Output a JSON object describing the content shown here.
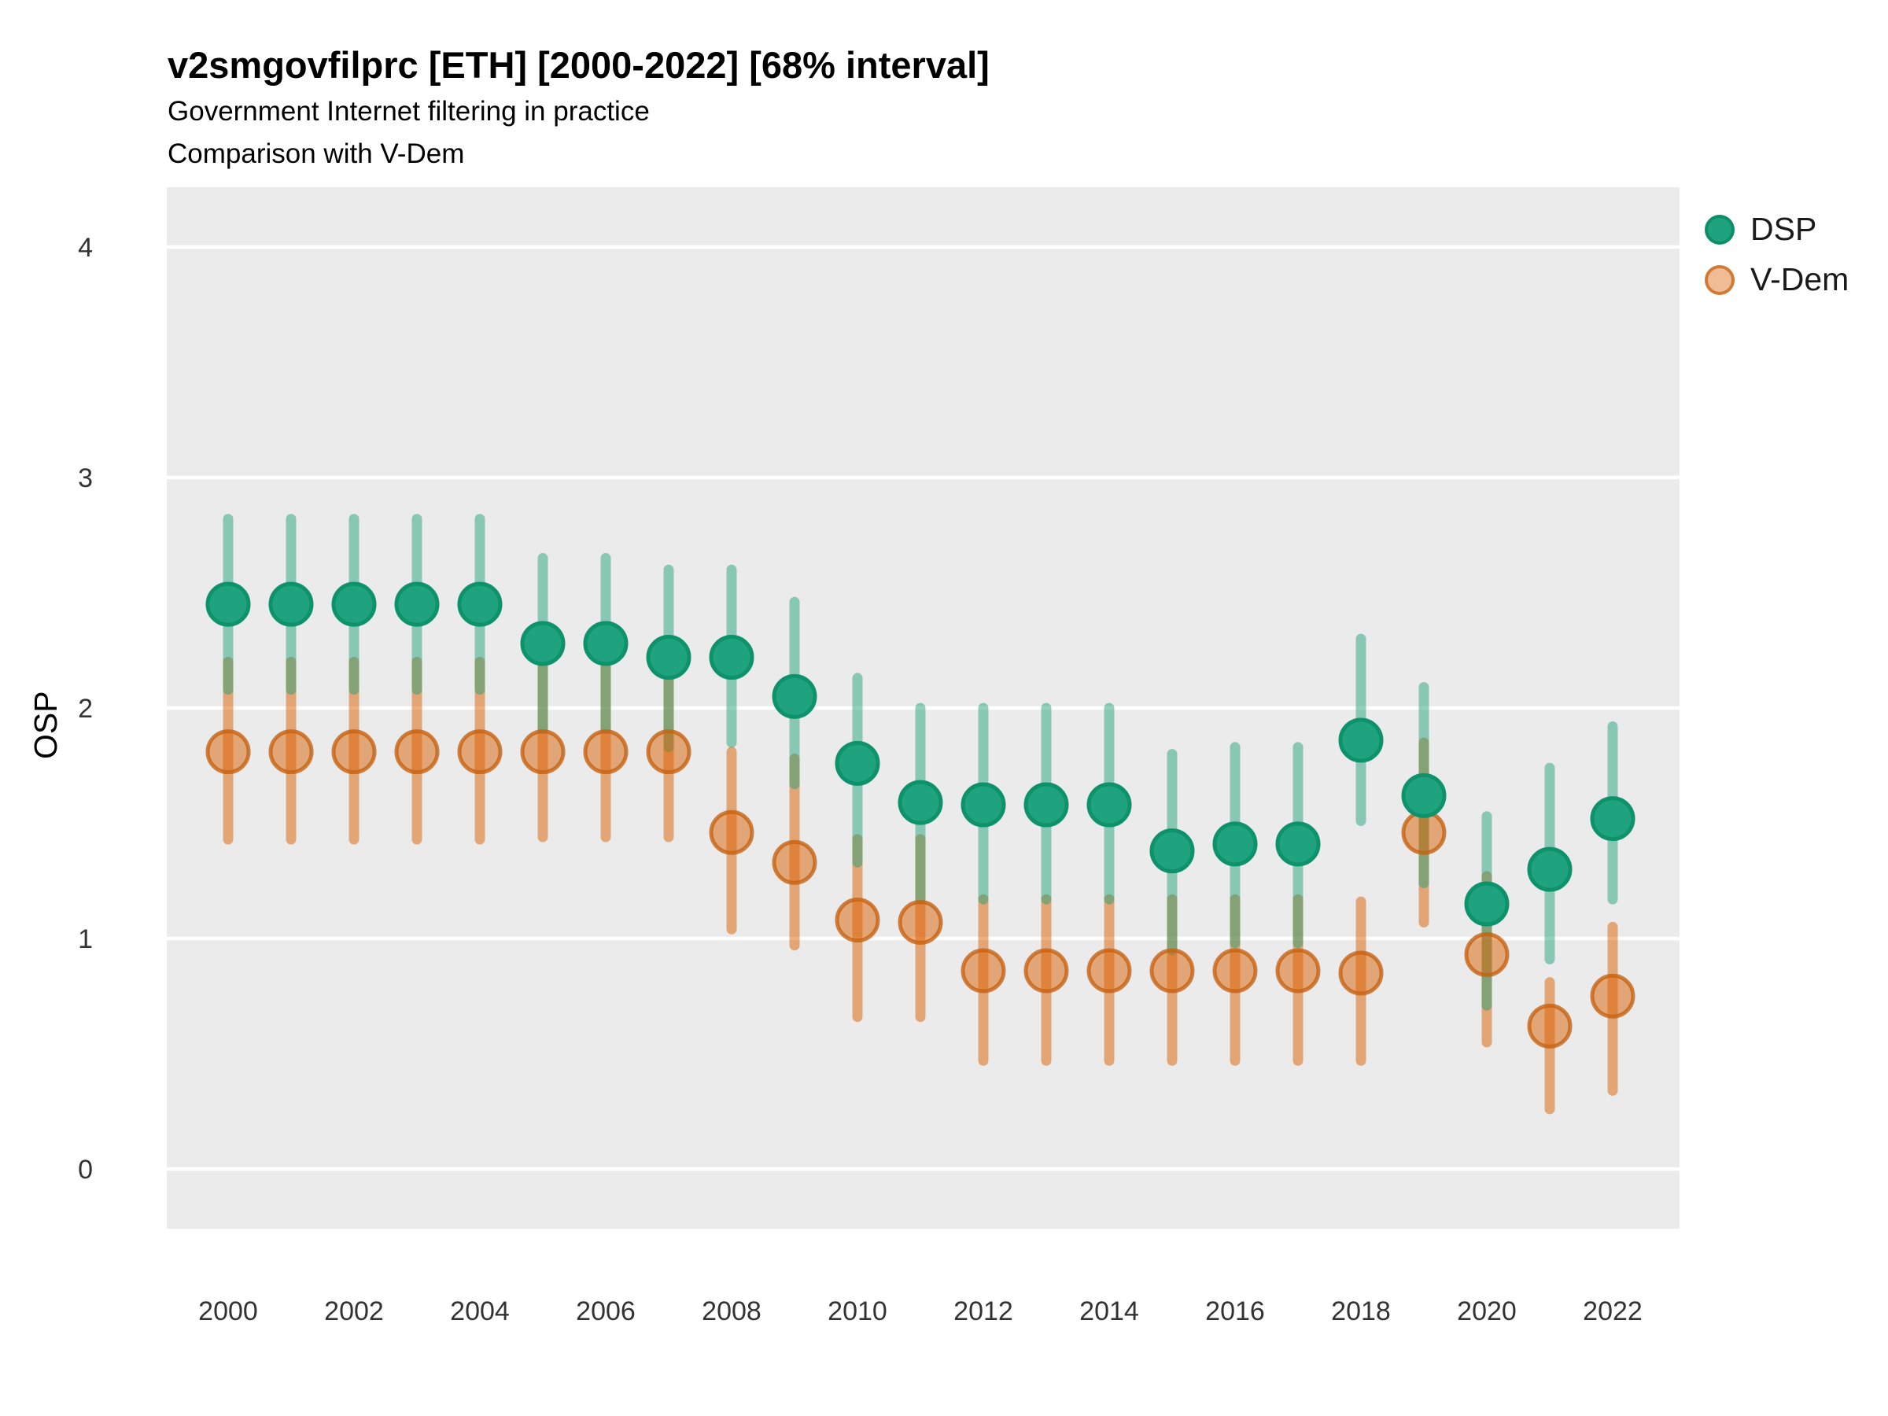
{
  "header": {
    "title": "v2smgovfilprc [ETH] [2000-2022] [68% interval]",
    "subtitle1": "Government Internet filtering in practice",
    "subtitle2": "Comparison with V-Dem"
  },
  "legend": {
    "position": "right",
    "items": [
      {
        "label": "DSP",
        "color": "#1b9e77"
      },
      {
        "label": "V-Dem",
        "color": "#d95f02"
      }
    ]
  },
  "chart_data": {
    "type": "scatter",
    "subtype": "point-estimates-with-68pct-intervals",
    "title": "v2smgovfilprc [ETH] [2000-2022] [68% interval]",
    "subtitle": [
      "Government Internet filtering in practice",
      "Comparison with V-Dem"
    ],
    "xlabel": "",
    "ylabel": "OSP",
    "interval_level": "68%",
    "grid": "white major gridlines on light-gray panel",
    "panel_color": "#ebebeb",
    "gridline_color": "#ffffff",
    "x_tick_labels": [
      2000,
      2002,
      2004,
      2006,
      2008,
      2010,
      2012,
      2014,
      2016,
      2018,
      2020,
      2022
    ],
    "y_ticks": [
      0,
      1,
      2,
      3,
      4
    ],
    "ylim": [
      -0.26,
      4.26
    ],
    "xlim": [
      1999,
      2023
    ],
    "x": [
      2000,
      2001,
      2002,
      2003,
      2004,
      2005,
      2006,
      2007,
      2008,
      2009,
      2010,
      2011,
      2012,
      2013,
      2014,
      2015,
      2016,
      2017,
      2018,
      2019,
      2020,
      2021,
      2022
    ],
    "series": [
      {
        "name": "DSP",
        "point_fill": "#1fa37f",
        "point_stroke": "#0e926c",
        "line_color": "rgba(27,158,119,0.48)",
        "points": [
          2.45,
          2.45,
          2.45,
          2.45,
          2.45,
          2.28,
          2.28,
          2.22,
          2.22,
          2.05,
          1.76,
          1.59,
          1.58,
          1.58,
          1.58,
          1.38,
          1.41,
          1.41,
          1.86,
          1.62,
          1.15,
          1.3,
          1.52
        ],
        "low": [
          2.08,
          2.08,
          2.08,
          2.08,
          2.08,
          1.91,
          1.91,
          1.83,
          1.85,
          1.67,
          1.33,
          1.17,
          1.17,
          1.17,
          1.17,
          0.95,
          0.98,
          0.98,
          1.51,
          1.24,
          0.71,
          0.91,
          1.17
        ],
        "high": [
          2.82,
          2.82,
          2.82,
          2.82,
          2.82,
          2.65,
          2.65,
          2.6,
          2.6,
          2.46,
          2.13,
          2.0,
          2.0,
          2.0,
          2.0,
          1.8,
          1.83,
          1.83,
          2.3,
          2.09,
          1.53,
          1.74,
          1.92
        ]
      },
      {
        "name": "V-Dem",
        "point_fill": "rgba(217,95,2,0.5)",
        "point_stroke": "rgba(198,98,18,0.8)",
        "line_color": "rgba(217,95,2,0.5)",
        "points": [
          1.81,
          1.81,
          1.81,
          1.81,
          1.81,
          1.81,
          1.81,
          1.81,
          1.46,
          1.33,
          1.08,
          1.07,
          0.86,
          0.86,
          0.86,
          0.86,
          0.86,
          0.86,
          0.85,
          1.46,
          0.93,
          0.62,
          0.75
        ],
        "low": [
          1.43,
          1.43,
          1.43,
          1.43,
          1.43,
          1.44,
          1.44,
          1.44,
          1.04,
          0.97,
          0.66,
          0.66,
          0.47,
          0.47,
          0.47,
          0.47,
          0.47,
          0.47,
          0.47,
          1.07,
          0.55,
          0.26,
          0.34
        ],
        "high": [
          2.2,
          2.2,
          2.2,
          2.2,
          2.2,
          2.2,
          2.2,
          2.18,
          1.81,
          1.78,
          1.43,
          1.43,
          1.17,
          1.17,
          1.17,
          1.17,
          1.17,
          1.17,
          1.16,
          1.85,
          1.27,
          0.81,
          1.05
        ]
      }
    ]
  }
}
